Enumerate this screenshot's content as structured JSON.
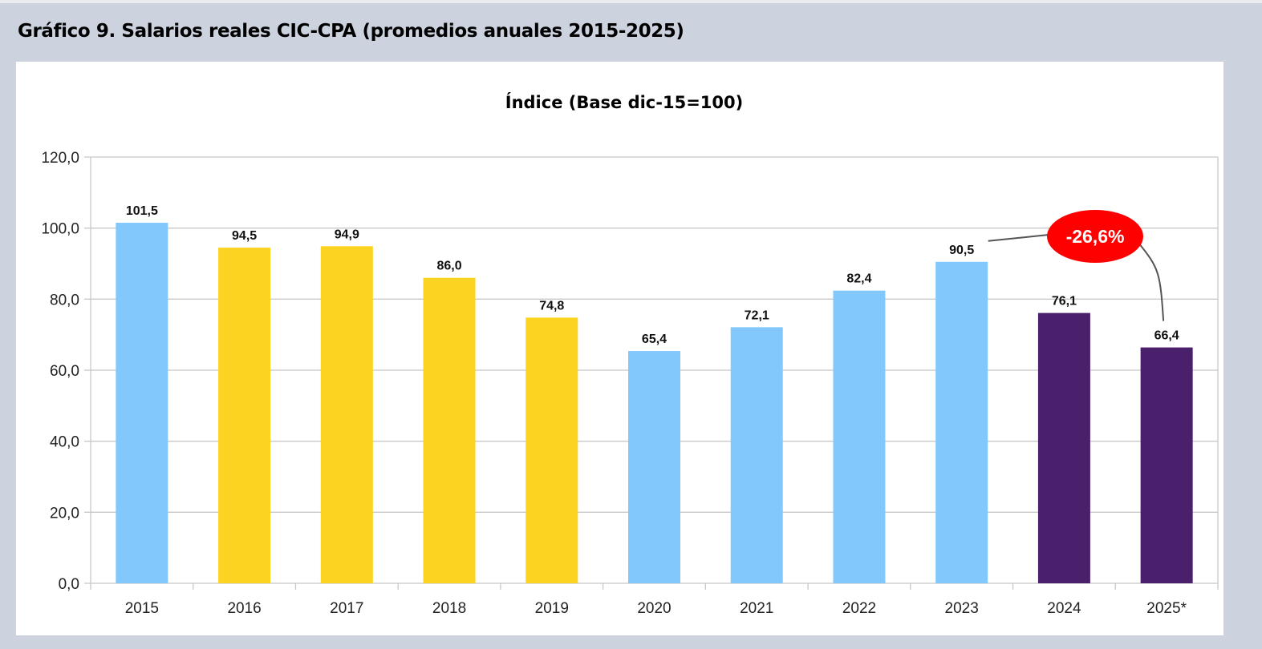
{
  "page_title": "Gráfico 9. Salarios reales CIC-CPA (promedios anuales 2015-2025)",
  "chart_data": {
    "type": "bar",
    "title": "Índice (Base dic-15=100)",
    "xlabel": "",
    "ylabel": "",
    "ylim": [
      0,
      120
    ],
    "grid": true,
    "y_ticks": [
      "0,0",
      "20,0",
      "40,0",
      "60,0",
      "80,0",
      "100,0",
      "120,0"
    ],
    "y_tick_values": [
      0,
      20,
      40,
      60,
      80,
      100,
      120
    ],
    "categories": [
      "2015",
      "2016",
      "2017",
      "2018",
      "2019",
      "2020",
      "2021",
      "2022",
      "2023",
      "2024",
      "2025*"
    ],
    "values": [
      101.5,
      94.5,
      94.9,
      86.0,
      74.8,
      65.4,
      72.1,
      82.4,
      90.5,
      76.1,
      66.4
    ],
    "value_labels": [
      "101,5",
      "94,5",
      "94,9",
      "86,0",
      "74,8",
      "65,4",
      "72,1",
      "82,4",
      "90,5",
      "76,1",
      "66,4"
    ],
    "bar_colors": [
      "#82c8fc",
      "#fdd321",
      "#fdd321",
      "#fdd321",
      "#fdd321",
      "#82c8fc",
      "#82c8fc",
      "#82c8fc",
      "#82c8fc",
      "#4a1f6b",
      "#4a1f6b"
    ],
    "annotation": {
      "text": "-26,6%",
      "from_category": "2023",
      "to_category": "2025*",
      "color": "#ff0000"
    }
  }
}
